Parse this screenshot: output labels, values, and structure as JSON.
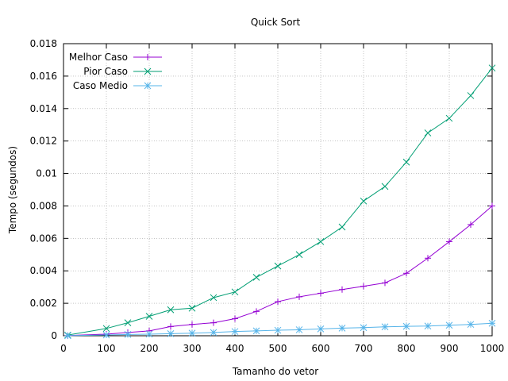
{
  "chart_data": {
    "type": "line",
    "title": "Quick Sort",
    "xlabel": "Tamanho do vetor",
    "ylabel": "Tempo (segundos)",
    "xlim": [
      0,
      1000
    ],
    "ylim": [
      0,
      0.018
    ],
    "xticks": [
      0,
      100,
      200,
      300,
      400,
      500,
      600,
      700,
      800,
      900,
      1000
    ],
    "yticks": [
      0,
      0.002,
      0.004,
      0.006,
      0.008,
      0.01,
      0.012,
      0.014,
      0.016,
      0.018
    ],
    "xtick_labels": [
      "0",
      "100",
      "200",
      "300",
      "400",
      "500",
      "600",
      "700",
      "800",
      "900",
      "1000"
    ],
    "ytick_labels": [
      "0",
      "0.002",
      "0.004",
      "0.006",
      "0.008",
      "0.01",
      "0.012",
      "0.014",
      "0.016",
      "0.018"
    ],
    "grid": true,
    "legend_position": "top-left",
    "x": [
      10,
      100,
      150,
      200,
      250,
      300,
      350,
      400,
      450,
      500,
      550,
      600,
      650,
      700,
      750,
      800,
      850,
      900,
      950,
      1000
    ],
    "series": [
      {
        "name": "Melhor Caso",
        "color": "#9400d3",
        "marker": "plus",
        "values": [
          1e-05,
          0.0001,
          0.0002,
          0.0003,
          0.00057,
          0.0007,
          0.0008,
          0.00105,
          0.0015,
          0.0021,
          0.0024,
          0.00262,
          0.00285,
          0.00305,
          0.00326,
          0.00385,
          0.00478,
          0.0058,
          0.00685,
          0.008
        ]
      },
      {
        "name": "Pior Caso",
        "color": "#009e73",
        "marker": "cross",
        "values": [
          4e-05,
          0.00045,
          0.0008,
          0.0012,
          0.0016,
          0.0017,
          0.00235,
          0.0027,
          0.0036,
          0.0043,
          0.005,
          0.0058,
          0.0067,
          0.0083,
          0.0092,
          0.0107,
          0.0125,
          0.0134,
          0.0148,
          0.0165
        ]
      },
      {
        "name": "Caso Medio",
        "color": "#56b4e9",
        "marker": "star",
        "values": [
          5e-06,
          5e-05,
          8e-05,
          0.0001,
          0.00013,
          0.00016,
          0.0002,
          0.00026,
          0.0003,
          0.00034,
          0.00037,
          0.00042,
          0.00047,
          0.0005,
          0.00055,
          0.00058,
          0.0006,
          0.00065,
          0.0007,
          0.00077
        ]
      }
    ]
  }
}
